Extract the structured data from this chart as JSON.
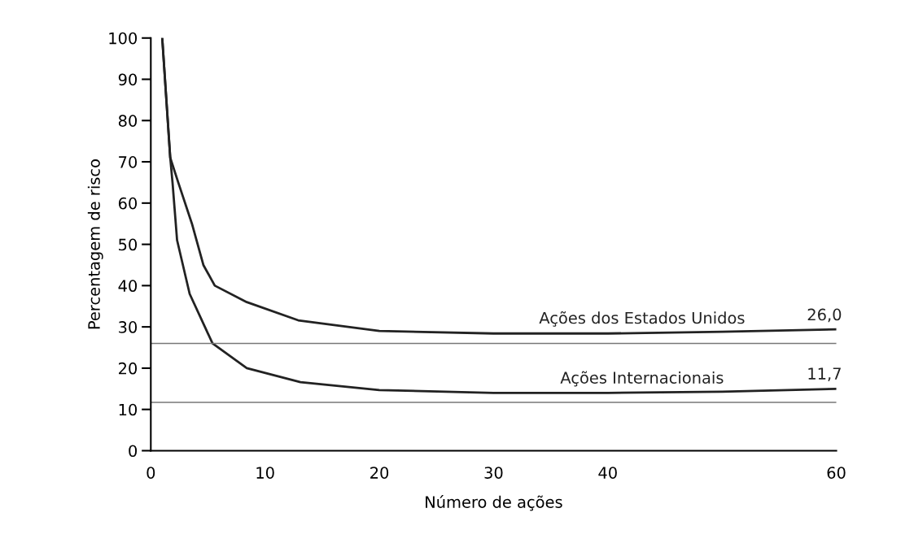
{
  "chart_data": {
    "type": "line",
    "xlabel": "Número de ações",
    "ylabel": "Percentagem de risco",
    "xlim": [
      0,
      60
    ],
    "xticks": [
      0,
      10,
      20,
      30,
      40,
      60
    ],
    "ylim": [
      0,
      100
    ],
    "yticks": [
      0,
      10,
      20,
      30,
      40,
      50,
      60,
      70,
      80,
      90,
      100
    ],
    "grid": false,
    "legend": false,
    "marker": "none",
    "line_style": "solid",
    "series": [
      {
        "name": "Ações dos Estados Unidos",
        "color": "#222222",
        "x": [
          1,
          1.7,
          2.4,
          3.6,
          4.6,
          5.6,
          8.4,
          12.9,
          20,
          30,
          40,
          50,
          60
        ],
        "values": [
          100,
          71,
          65,
          55,
          45,
          40,
          36,
          31.6,
          29,
          28.4,
          28.4,
          28.8,
          29.4
        ]
      },
      {
        "name": "Ações Internacionais",
        "color": "#222222",
        "x": [
          1,
          1.7,
          1.9,
          2.3,
          3.4,
          5.4,
          8.4,
          13.1,
          20,
          30,
          40,
          50,
          60
        ],
        "values": [
          100,
          71,
          65,
          51,
          38,
          26,
          20,
          16.6,
          14.7,
          14,
          14,
          14.3,
          15
        ]
      }
    ],
    "ref_lines": [
      {
        "axis": "y",
        "value": 26.0,
        "label": "26,0",
        "color": "#777777"
      },
      {
        "axis": "y",
        "value": 11.7,
        "label": "11,7",
        "color": "#777777"
      }
    ]
  }
}
